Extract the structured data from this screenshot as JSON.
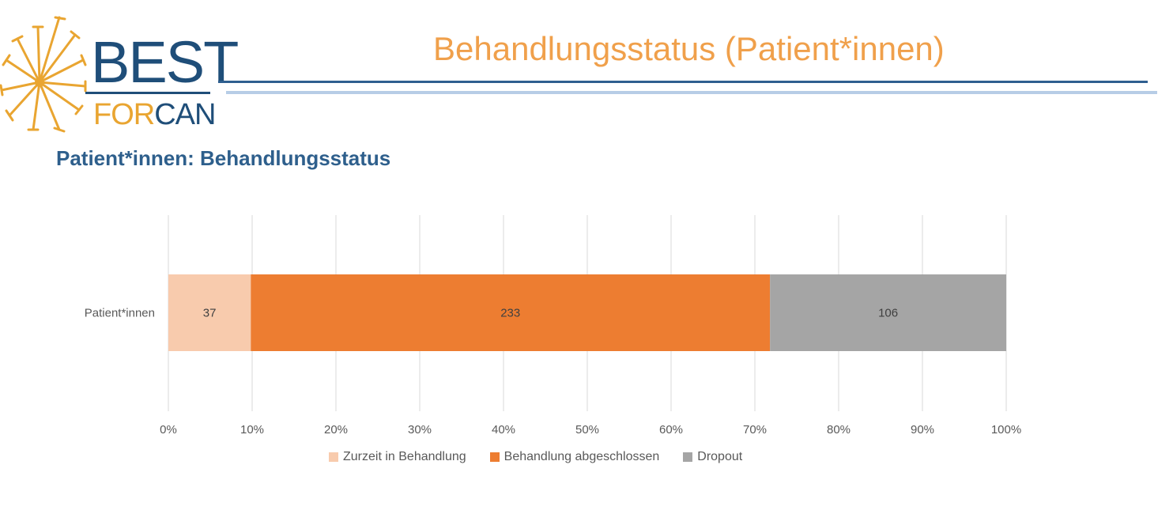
{
  "logo": {
    "line1": "BEST",
    "line2a": "FOR",
    "line2b": "CAN"
  },
  "slide_title": "Behandlungsstatus (Patient*innen)",
  "chart_heading": "Patient*innen: Behandlungsstatus",
  "colors": {
    "title": "#f0a04b",
    "heading": "#2e5f8c",
    "brand_blue": "#1f4e79",
    "brand_orange": "#e9a531"
  },
  "chart_data": {
    "type": "bar",
    "orientation": "horizontal",
    "stacked": "percent",
    "categories": [
      "Patient*innen"
    ],
    "series": [
      {
        "name": "Zurzeit in Behandlung",
        "values": [
          37
        ],
        "color": "#f8cbad"
      },
      {
        "name": "Behandlung abgeschlossen",
        "values": [
          233
        ],
        "color": "#ed7d31"
      },
      {
        "name": "Dropout",
        "values": [
          106
        ],
        "color": "#a5a5a5"
      }
    ],
    "xticks": [
      "0%",
      "10%",
      "20%",
      "30%",
      "40%",
      "50%",
      "60%",
      "70%",
      "80%",
      "90%",
      "100%"
    ],
    "xlim": [
      0,
      100
    ],
    "grid": true,
    "legend_position": "bottom"
  }
}
